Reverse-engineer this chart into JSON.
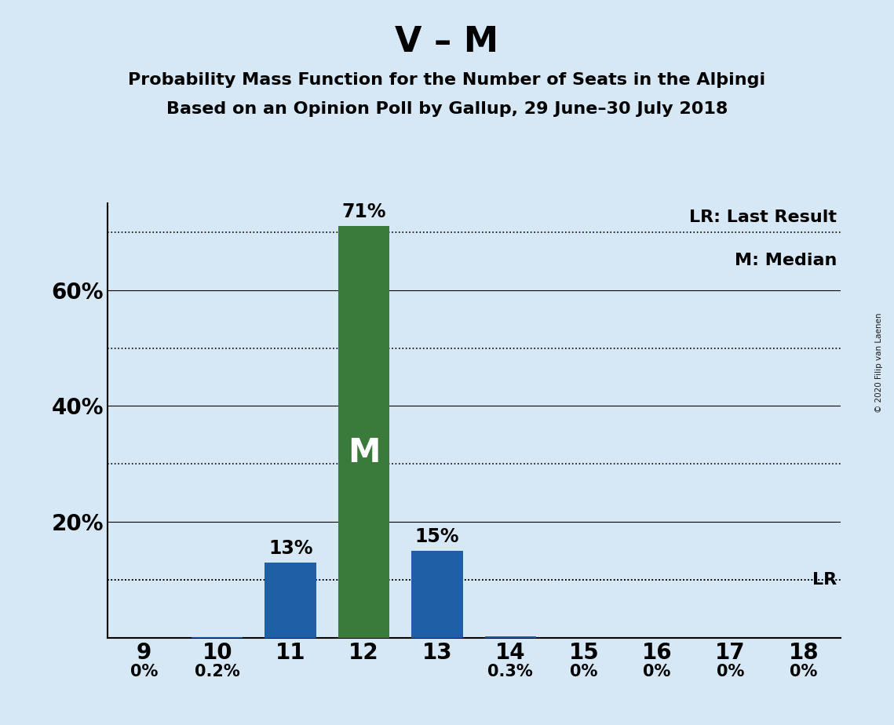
{
  "title_main": "V – M",
  "subtitle1": "Probability Mass Function for the Number of Seats in the Alþingi",
  "subtitle2": "Based on an Opinion Poll by Gallup, 29 June–30 July 2018",
  "categories": [
    9,
    10,
    11,
    12,
    13,
    14,
    15,
    16,
    17,
    18
  ],
  "values": [
    0.0,
    0.2,
    13.0,
    71.0,
    15.0,
    0.3,
    0.0,
    0.0,
    0.0,
    0.0
  ],
  "bar_colors": [
    "#1f5fa6",
    "#1f5fa6",
    "#1f5fa6",
    "#3a7a3a",
    "#1f5fa6",
    "#1f5fa6",
    "#1f5fa6",
    "#1f5fa6",
    "#1f5fa6",
    "#1f5fa6"
  ],
  "median_bar": 12,
  "background_color": "#d6e8f5",
  "ylim": [
    0,
    75
  ],
  "xlim": [
    8.5,
    18.5
  ],
  "copyright_text": "© 2020 Filip van Laenen",
  "legend_lr_text": "LR: Last Result",
  "legend_m_text": "M: Median",
  "lr_line_y": 10.0,
  "bar_width": 0.7,
  "title_fontsize": 32,
  "subtitle_fontsize": 16,
  "axis_tick_fontsize": 20,
  "annotation_fontsize": 17,
  "legend_fontsize": 16,
  "median_label": "M",
  "solid_gridlines": [
    20,
    40,
    60
  ],
  "dotted_gridlines": [
    10,
    30,
    50,
    70
  ],
  "ytick_positions": [
    20,
    40,
    60
  ],
  "ytick_labels": [
    "20%",
    "40%",
    "60%"
  ]
}
